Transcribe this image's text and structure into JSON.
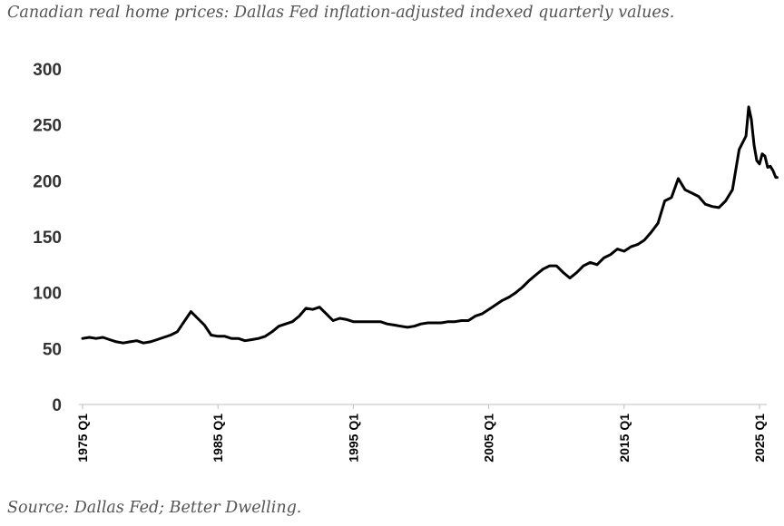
{
  "title": "Canadian real home prices: Dallas Fed inflation-adjusted indexed quarterly values.",
  "source": "Source: Dallas Fed; Better Dwelling.",
  "chart_data": {
    "type": "line",
    "title": "Canadian real home prices: Dallas Fed inflation-adjusted indexed quarterly values.",
    "xlabel": "",
    "ylabel": "",
    "ylim": [
      0,
      300
    ],
    "yticks": [
      "0",
      "50",
      "100",
      "150",
      "200",
      "250",
      "300"
    ],
    "xlim": [
      1975.0,
      2025.0
    ],
    "xticks": [
      {
        "value": 1975.0,
        "label": "1975 Q1"
      },
      {
        "value": 1985.0,
        "label": "1985 Q1"
      },
      {
        "value": 1995.0,
        "label": "1995 Q1"
      },
      {
        "value": 2005.0,
        "label": "2005 Q1"
      },
      {
        "value": 2015.0,
        "label": "2015 Q1"
      },
      {
        "value": 2025.0,
        "label": "2025 Q1"
      }
    ],
    "grid": false,
    "line_color": "#000000",
    "series": [
      {
        "points": [
          [
            1975.0,
            59
          ],
          [
            1975.5,
            60
          ],
          [
            1976.0,
            59
          ],
          [
            1976.5,
            60
          ],
          [
            1977.0,
            58
          ],
          [
            1977.5,
            56
          ],
          [
            1978.0,
            55
          ],
          [
            1978.5,
            56
          ],
          [
            1979.0,
            57
          ],
          [
            1979.5,
            55
          ],
          [
            1980.0,
            56
          ],
          [
            1980.5,
            58
          ],
          [
            1981.0,
            60
          ],
          [
            1981.5,
            62
          ],
          [
            1982.0,
            65
          ],
          [
            1982.5,
            74
          ],
          [
            1983.0,
            83
          ],
          [
            1983.5,
            77
          ],
          [
            1984.0,
            71
          ],
          [
            1984.5,
            62
          ],
          [
            1985.0,
            61
          ],
          [
            1985.5,
            61
          ],
          [
            1986.0,
            59
          ],
          [
            1986.5,
            59
          ],
          [
            1987.0,
            57
          ],
          [
            1987.5,
            58
          ],
          [
            1988.0,
            59
          ],
          [
            1988.5,
            61
          ],
          [
            1989.0,
            65
          ],
          [
            1989.5,
            70
          ],
          [
            1990.0,
            72
          ],
          [
            1990.5,
            74
          ],
          [
            1991.0,
            79
          ],
          [
            1991.5,
            86
          ],
          [
            1992.0,
            85
          ],
          [
            1992.5,
            87
          ],
          [
            1993.0,
            81
          ],
          [
            1993.5,
            75
          ],
          [
            1994.0,
            77
          ],
          [
            1994.5,
            76
          ],
          [
            1995.0,
            74
          ],
          [
            1995.5,
            74
          ],
          [
            1996.0,
            74
          ],
          [
            1996.5,
            74
          ],
          [
            1997.0,
            74
          ],
          [
            1997.5,
            72
          ],
          [
            1998.0,
            71
          ],
          [
            1998.5,
            70
          ],
          [
            1999.0,
            69
          ],
          [
            1999.5,
            70
          ],
          [
            2000.0,
            72
          ],
          [
            2000.5,
            73
          ],
          [
            2001.0,
            73
          ],
          [
            2001.5,
            73
          ],
          [
            2002.0,
            74
          ],
          [
            2002.5,
            74
          ],
          [
            2003.0,
            75
          ],
          [
            2003.5,
            75
          ],
          [
            2004.0,
            79
          ],
          [
            2004.5,
            81
          ],
          [
            2005.0,
            85
          ],
          [
            2005.5,
            89
          ],
          [
            2006.0,
            93
          ],
          [
            2006.5,
            96
          ],
          [
            2007.0,
            100
          ],
          [
            2007.5,
            105
          ],
          [
            2008.0,
            111
          ],
          [
            2008.5,
            116
          ],
          [
            2009.0,
            121
          ],
          [
            2009.5,
            124
          ],
          [
            2010.0,
            124
          ],
          [
            2010.5,
            118
          ],
          [
            2011.0,
            113
          ],
          [
            2011.5,
            118
          ],
          [
            2012.0,
            124
          ],
          [
            2012.5,
            127
          ],
          [
            2013.0,
            125
          ],
          [
            2013.5,
            131
          ],
          [
            2014.0,
            134
          ],
          [
            2014.5,
            139
          ],
          [
            2015.0,
            137
          ],
          [
            2015.5,
            141
          ],
          [
            2016.0,
            143
          ],
          [
            2016.5,
            147
          ],
          [
            2017.0,
            154
          ],
          [
            2017.5,
            162
          ],
          [
            2018.0,
            182
          ],
          [
            2018.5,
            185
          ],
          [
            2019.0,
            202
          ],
          [
            2019.5,
            192
          ],
          [
            2020.0,
            189
          ],
          [
            2020.5,
            186
          ],
          [
            2021.0,
            179
          ],
          [
            2021.5,
            177
          ],
          [
            2022.0,
            176
          ],
          [
            2022.5,
            182
          ],
          [
            2023.0,
            192
          ],
          [
            2023.5,
            228
          ],
          [
            2024.0,
            240
          ],
          [
            2024.2,
            266
          ],
          [
            2024.4,
            255
          ],
          [
            2024.6,
            232
          ],
          [
            2024.8,
            218
          ],
          [
            2025.0,
            215
          ],
          [
            2025.2,
            224
          ],
          [
            2025.4,
            222
          ],
          [
            2025.6,
            212
          ],
          [
            2025.8,
            213
          ],
          [
            2026.0,
            209
          ],
          [
            2026.2,
            203
          ],
          [
            2026.3,
            203
          ]
        ]
      }
    ]
  }
}
